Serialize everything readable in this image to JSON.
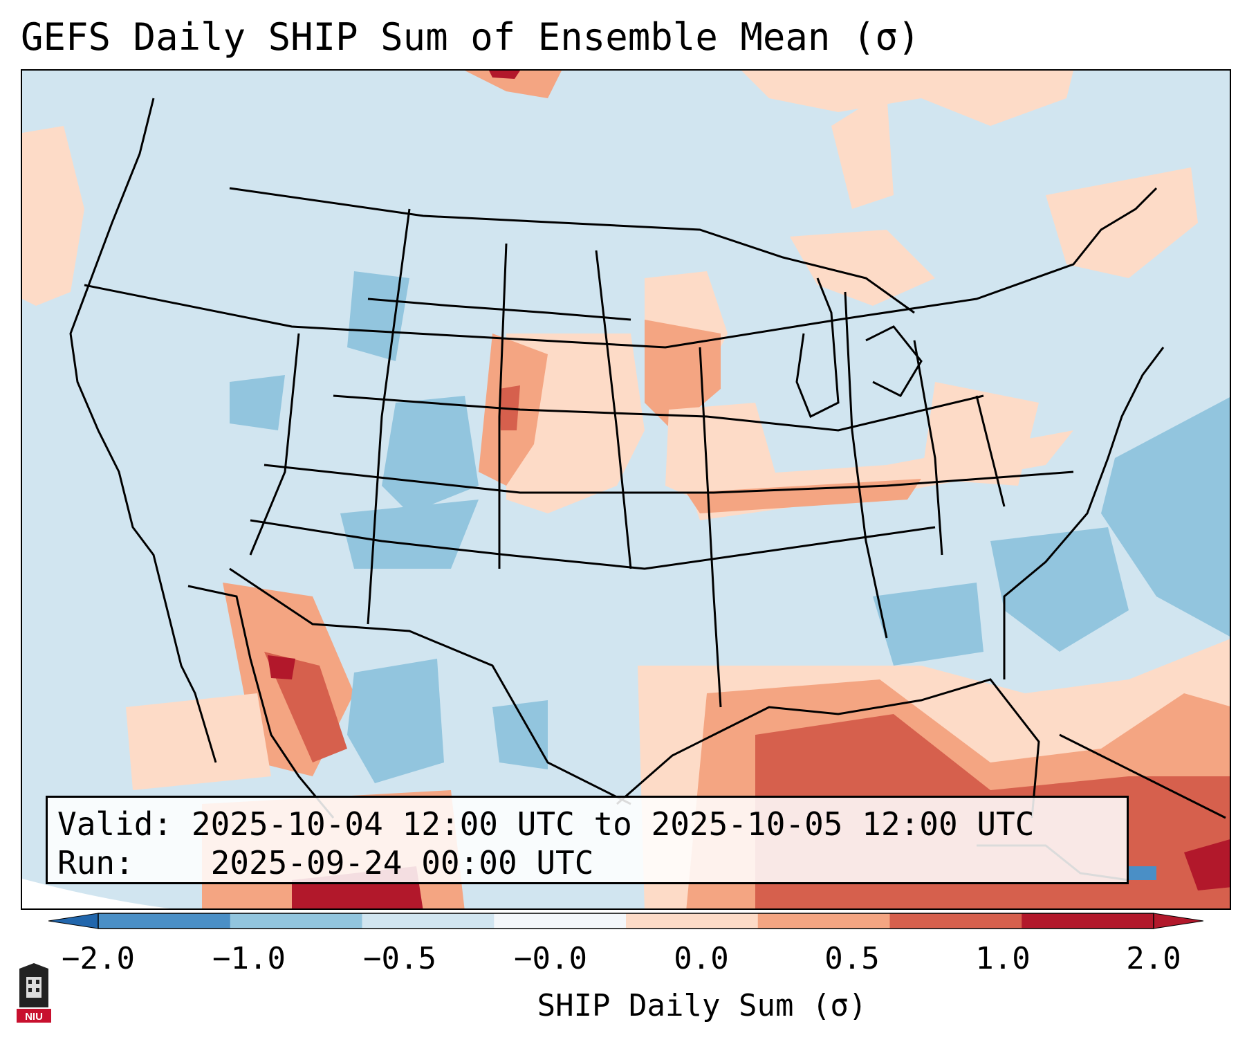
{
  "title": "GEFS Daily SHIP Sum of Ensemble Mean (σ)",
  "info": {
    "valid_label": "Valid:",
    "valid_value": "2025-10-04 12:00 UTC to 2025-10-05 12:00 UTC",
    "run_label": "Run:",
    "run_value": "2025-09-24 00:00 UTC"
  },
  "colorbar": {
    "label": "SHIP Daily Sum (σ)",
    "ticks": [
      "−2.0",
      "−1.0",
      "−0.5",
      "−0.0",
      "0.0",
      "0.5",
      "1.0",
      "2.0"
    ],
    "colors": [
      "#4a8fc6",
      "#92c5de",
      "#d1e5f0",
      "#f4f7fa",
      "#fddbc7",
      "#f4a582",
      "#d6604d",
      "#b2182b"
    ]
  },
  "logo": {
    "text": "NIU"
  }
}
